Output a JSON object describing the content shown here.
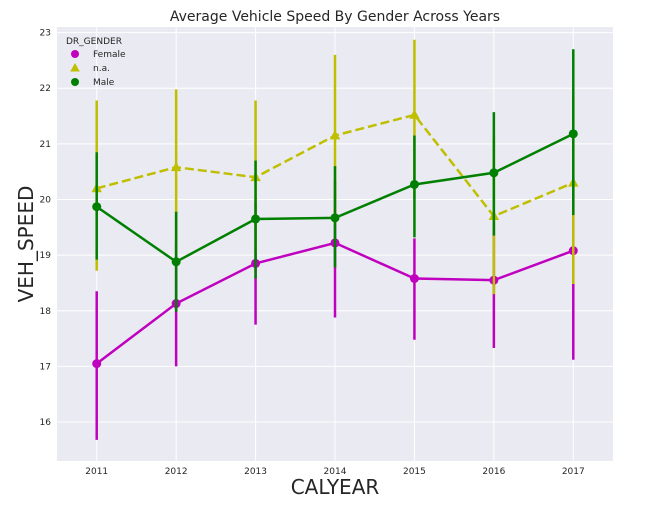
{
  "chart_data": {
    "type": "line",
    "title": "Average Vehicle Speed By Gender Across Years",
    "xlabel": "CALYEAR",
    "ylabel": "VEH_SPEED",
    "categories": [
      "2011",
      "2012",
      "2013",
      "2014",
      "2015",
      "2016",
      "2017"
    ],
    "y_ticks": [
      "16",
      "17",
      "18",
      "19",
      "20",
      "21",
      "22",
      "23"
    ],
    "ylim": [
      15.3,
      23.1
    ],
    "grid": true,
    "legend": {
      "title": "DR_GENDER",
      "position": "top-left"
    },
    "series": [
      {
        "name": "Female",
        "color": "#bf00bf",
        "marker": "circle",
        "linestyle": "solid",
        "values": [
          17.05,
          18.13,
          18.85,
          19.22,
          18.58,
          18.55,
          19.08
        ],
        "ci_low": [
          15.68,
          17.0,
          17.75,
          17.88,
          17.48,
          17.33,
          17.12
        ],
        "ci_high": [
          18.35,
          19.25,
          19.95,
          20.32,
          19.3,
          19.62,
          20.45
        ]
      },
      {
        "name": "n.a.",
        "color": "#bfbf00",
        "marker": "triangle",
        "linestyle": "dashed",
        "values": [
          20.2,
          20.58,
          20.4,
          21.15,
          21.52,
          19.7,
          20.3
        ],
        "ci_low": [
          18.72,
          19.02,
          19.02,
          19.55,
          20.02,
          18.3,
          18.48
        ],
        "ci_high": [
          21.78,
          21.98,
          21.78,
          22.6,
          22.87,
          21.15,
          21.85
        ]
      },
      {
        "name": "Male",
        "color": "#008000",
        "marker": "circle",
        "linestyle": "solid",
        "values": [
          19.87,
          18.88,
          19.65,
          19.67,
          20.27,
          20.48,
          21.18
        ],
        "ci_low": [
          18.92,
          17.98,
          18.58,
          18.78,
          19.32,
          19.35,
          19.72
        ],
        "ci_high": [
          20.85,
          19.78,
          20.7,
          20.6,
          21.15,
          21.57,
          22.7
        ]
      }
    ]
  }
}
